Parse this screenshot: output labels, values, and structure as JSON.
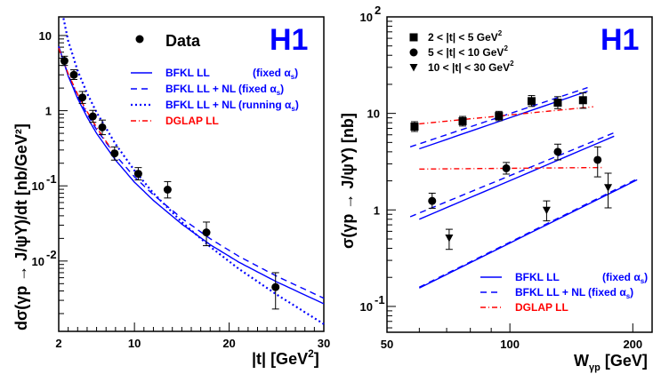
{
  "chart_data": [
    {
      "type": "scatter",
      "panel": "left",
      "brand": "H1",
      "xlabel": "|t| [GeV",
      "xlabel_sup": "2",
      "xlabel_end": "]",
      "ylabel": "dσ(γp → J/ψY)/dt [nb/GeV²]",
      "xscale": "linear",
      "yscale": "log",
      "xlim": [
        2,
        30
      ],
      "ylim": [
        0.00116,
        17.7
      ],
      "x_ticks": [
        {
          "value": 2,
          "label": "2"
        },
        {
          "value": 10,
          "label": "10"
        },
        {
          "value": 20,
          "label": "20"
        },
        {
          "value": 30,
          "label": "30"
        }
      ],
      "y_ticks": [
        {
          "value": 10,
          "label": "10",
          "exp": ""
        },
        {
          "value": 1,
          "label": "1",
          "exp": ""
        },
        {
          "value": 0.1,
          "label": "10",
          "exp": "-1"
        },
        {
          "value": 0.01,
          "label": "10",
          "exp": "-2"
        }
      ],
      "data_legend": "Data",
      "data": {
        "x": [
          2.6,
          3.6,
          4.5,
          5.6,
          6.6,
          7.9,
          10.4,
          13.5,
          17.6,
          24.9
        ],
        "y": [
          4.6,
          3.0,
          1.5,
          0.84,
          0.6,
          0.27,
          0.145,
          0.089,
          0.024,
          0.0045
        ],
        "yerr_low": [
          0.6,
          0.4,
          0.25,
          0.14,
          0.12,
          0.05,
          0.025,
          0.02,
          0.008,
          0.0022
        ],
        "yerr_high": [
          0.7,
          0.5,
          0.3,
          0.17,
          0.15,
          0.06,
          0.03,
          0.025,
          0.009,
          0.0025
        ]
      },
      "series": [
        {
          "name": "BFKL LL",
          "name_extra": "(fixed αs)",
          "style": "solid",
          "color": "#0000ff",
          "x": [
            2,
            3,
            4,
            5,
            6,
            8,
            10,
            12,
            15,
            18,
            21,
            25,
            30
          ],
          "y": [
            7.2,
            2.9,
            1.45,
            0.82,
            0.5,
            0.22,
            0.112,
            0.064,
            0.031,
            0.0165,
            0.0097,
            0.0053,
            0.0027
          ]
        },
        {
          "name": "BFKL LL + NL",
          "name_extra": "(fixed αs)",
          "style": "dashed",
          "color": "#0000ff",
          "x": [
            2,
            3,
            4,
            5,
            6,
            8,
            10,
            12,
            15,
            18,
            21,
            25,
            30
          ],
          "y": [
            7.0,
            3.0,
            1.55,
            0.9,
            0.56,
            0.255,
            0.132,
            0.076,
            0.037,
            0.0198,
            0.0116,
            0.0063,
            0.0032
          ]
        },
        {
          "name": "BFKL LL + NL",
          "name_extra": "(running αs)",
          "style": "dotted",
          "color": "#0000ff",
          "x": [
            2.5,
            3,
            4,
            5,
            6,
            8,
            10,
            12,
            15,
            18,
            21,
            25,
            30
          ],
          "y": [
            17.0,
            8.5,
            3.4,
            1.7,
            0.95,
            0.36,
            0.16,
            0.08,
            0.033,
            0.0155,
            0.0079,
            0.0036,
            0.00145
          ]
        },
        {
          "name": "DGLAP LL",
          "name_extra": "",
          "style": "dashdot",
          "color": "#ff0000",
          "x": [
            2,
            3,
            4,
            5,
            6,
            7,
            8
          ],
          "y": [
            6.8,
            3.1,
            1.65,
            0.97,
            0.6,
            0.39,
            0.26
          ]
        }
      ]
    },
    {
      "type": "scatter",
      "panel": "right",
      "brand": "H1",
      "xlabel": "W",
      "xlabel_sub": "γp",
      "xlabel_end": " [GeV]",
      "ylabel": "σ(γp → J/ψY) [nb]",
      "xscale": "log",
      "yscale": "log",
      "xlim": [
        50,
        223
      ],
      "ylim": [
        0.054,
        100
      ],
      "x_ticks": [
        {
          "value": 50,
          "label": "50"
        },
        {
          "value": 100,
          "label": "100"
        },
        {
          "value": 200,
          "label": "200"
        }
      ],
      "y_ticks": [
        {
          "value": 100,
          "label": "10",
          "exp": "2"
        },
        {
          "value": 10,
          "label": "10",
          "exp": ""
        },
        {
          "value": 1,
          "label": "1",
          "exp": ""
        },
        {
          "value": 0.1,
          "label": "10",
          "exp": "-1"
        }
      ],
      "data_sets": [
        {
          "name": "2 < |t| < 5 GeV",
          "sup": "2",
          "marker": "square",
          "x": [
            58.4,
            76.6,
            94.0,
            113,
            131,
            151
          ],
          "y": [
            7.3,
            8.3,
            9.4,
            13.4,
            12.9,
            13.7
          ],
          "yerr_low": [
            0.8,
            0.9,
            1.0,
            1.6,
            1.7,
            2.4
          ],
          "yerr_high": [
            0.9,
            1.0,
            1.1,
            1.9,
            2.0,
            2.6
          ]
        },
        {
          "name": "5 < |t| < 10 GeV",
          "sup": "2",
          "marker": "circle",
          "x": [
            64.5,
            98,
            131,
            164
          ],
          "y": [
            1.24,
            2.7,
            4.0,
            3.3
          ],
          "yerr_low": [
            0.2,
            0.35,
            0.7,
            1.1
          ],
          "yerr_high": [
            0.25,
            0.4,
            0.8,
            1.2
          ]
        },
        {
          "name": "10 < |t| < 30 GeV",
          "sup": "2",
          "marker": "triangle",
          "x": [
            71,
            123,
            174
          ],
          "y": [
            0.51,
            0.99,
            1.7
          ],
          "yerr_low": [
            0.12,
            0.22,
            0.65
          ],
          "yerr_high": [
            0.12,
            0.25,
            0.7
          ]
        }
      ],
      "series": [
        {
          "name": "BFKL LL",
          "name_extra": "(fixed αs)",
          "style": "solid",
          "color": "#0000ff",
          "group": "2-5",
          "x": [
            60,
            155
          ],
          "y": [
            4.3,
            17.0
          ]
        },
        {
          "name": "BFKL LL + NL",
          "name_extra": "(fixed αs)",
          "style": "dashed",
          "color": "#0000ff",
          "group": "2-5",
          "x": [
            57,
            155
          ],
          "y": [
            4.5,
            18.5
          ]
        },
        {
          "name": "DGLAP LL",
          "name_extra": "",
          "style": "dashdot",
          "color": "#ff0000",
          "group": "2-5",
          "x": [
            60,
            160
          ],
          "y": [
            7.8,
            11.7
          ]
        },
        {
          "name": "BFKL LL",
          "name_extra": "(fixed αs)",
          "style": "solid",
          "color": "#0000ff",
          "group": "5-10",
          "x": [
            60,
            180
          ],
          "y": [
            0.8,
            5.8
          ]
        },
        {
          "name": "BFKL LL + NL",
          "name_extra": "(fixed αs)",
          "style": "dashed",
          "color": "#0000ff",
          "group": "5-10",
          "x": [
            57,
            180
          ],
          "y": [
            0.85,
            6.3
          ]
        },
        {
          "name": "DGLAP LL",
          "name_extra": "",
          "style": "dashdot",
          "color": "#ff0000",
          "group": "5-10",
          "x": [
            60,
            170
          ],
          "y": [
            2.65,
            2.75
          ]
        },
        {
          "name": "BFKL LL",
          "name_extra": "(fixed αs)",
          "style": "solid",
          "color": "#0000ff",
          "group": "10-30",
          "x": [
            60,
            205
          ],
          "y": [
            0.155,
            2.05
          ]
        },
        {
          "name": "BFKL LL + NL",
          "name_extra": "(fixed αs)",
          "style": "dashed",
          "color": "#0000ff",
          "group": "10-30",
          "x": [
            60,
            205
          ],
          "y": [
            0.158,
            2.1
          ]
        }
      ],
      "legend": [
        {
          "label": "BFKL LL",
          "extra": "(fixed α",
          "sub": "s",
          "close": ")",
          "style": "solid",
          "color": "#0000ff"
        },
        {
          "label": "BFKL LL + NL",
          "extra": "(fixed α",
          "sub": "s",
          "close": ")",
          "style": "dashed",
          "color": "#0000ff"
        },
        {
          "label": "DGLAP LL",
          "extra": "",
          "sub": "",
          "close": "",
          "style": "dashdot",
          "color": "#ff0000"
        }
      ]
    }
  ],
  "left_legend": [
    {
      "label": "BFKL LL",
      "extra": "(fixed α",
      "sub": "s",
      "close": ")",
      "style": "solid",
      "color": "#0000ff"
    },
    {
      "label": "BFKL LL + NL",
      "extra": "(fixed α",
      "sub": "s",
      "close": ")",
      "style": "dashed",
      "color": "#0000ff"
    },
    {
      "label": "BFKL LL + NL",
      "extra": "(running α",
      "sub": "s",
      "close": ")",
      "style": "dotted",
      "color": "#0000ff"
    },
    {
      "label": "DGLAP LL",
      "extra": "",
      "sub": "",
      "close": "",
      "style": "dashdot",
      "color": "#ff0000"
    }
  ],
  "colors": {
    "bfkl": "#0000ff",
    "dglap": "#ff0000",
    "data": "#000000"
  }
}
